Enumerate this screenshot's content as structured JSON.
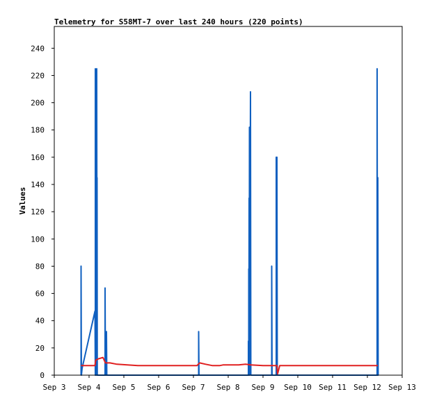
{
  "chart_data": {
    "type": "line",
    "title": "Telemetry for S58MT-7 over last 240 hours (220 points)",
    "xlabel": "",
    "ylabel": "Values",
    "xlim": [
      3.0,
      13.0
    ],
    "ylim": [
      0,
      256
    ],
    "x_ticks": [
      3,
      4,
      5,
      6,
      7,
      8,
      9,
      10,
      11,
      12,
      13
    ],
    "x_tick_labels": [
      "Sep 3",
      "Sep 4",
      "Sep 5",
      "Sep 6",
      "Sep 7",
      "Sep 8",
      "Sep 9",
      "Sep 10",
      "Sep 11",
      "Sep 12",
      "Sep 13"
    ],
    "y_ticks": [
      0,
      20,
      40,
      60,
      80,
      100,
      120,
      140,
      160,
      180,
      200,
      220,
      240
    ],
    "grid": false,
    "legend": "none",
    "series": [
      {
        "color": "#1060c0",
        "points": [
          [
            3.77,
            0
          ],
          [
            3.77,
            80
          ],
          [
            3.78,
            0
          ],
          [
            3.8,
            5
          ],
          [
            4.17,
            47
          ],
          [
            4.18,
            0
          ],
          [
            4.18,
            225
          ],
          [
            4.19,
            0
          ],
          [
            4.22,
            225
          ],
          [
            4.23,
            0
          ],
          [
            4.23,
            145
          ],
          [
            4.235,
            0
          ],
          [
            4.21,
            16
          ],
          [
            4.22,
            0
          ],
          [
            4.46,
            0
          ],
          [
            4.46,
            64
          ],
          [
            4.47,
            0
          ],
          [
            4.5,
            0
          ],
          [
            4.5,
            32
          ],
          [
            4.51,
            0
          ],
          [
            4.52,
            0
          ],
          [
            7.15,
            0
          ],
          [
            7.15,
            32
          ],
          [
            7.16,
            0
          ],
          [
            8.58,
            0
          ],
          [
            8.58,
            25
          ],
          [
            8.59,
            0
          ],
          [
            8.59,
            78
          ],
          [
            8.595,
            0
          ],
          [
            8.6,
            130
          ],
          [
            8.605,
            0
          ],
          [
            8.61,
            182
          ],
          [
            8.615,
            0
          ],
          [
            8.64,
            208
          ],
          [
            8.65,
            0
          ],
          [
            9.25,
            0
          ],
          [
            9.25,
            80
          ],
          [
            9.26,
            0
          ],
          [
            9.38,
            0
          ],
          [
            9.38,
            160
          ],
          [
            9.39,
            0
          ],
          [
            9.4,
            160
          ],
          [
            9.41,
            0
          ],
          [
            12.28,
            0
          ],
          [
            12.28,
            225
          ],
          [
            12.29,
            0
          ],
          [
            12.3,
            0
          ],
          [
            12.3,
            145
          ],
          [
            12.31,
            0
          ],
          [
            12.32,
            0
          ]
        ]
      },
      {
        "color": "#e02020",
        "points": [
          [
            3.77,
            7
          ],
          [
            4.17,
            7
          ],
          [
            4.19,
            11
          ],
          [
            4.27,
            12
          ],
          [
            4.4,
            13
          ],
          [
            4.47,
            9
          ],
          [
            4.6,
            9
          ],
          [
            4.8,
            8
          ],
          [
            5.1,
            7.5
          ],
          [
            5.4,
            7
          ],
          [
            6.0,
            7
          ],
          [
            6.5,
            7
          ],
          [
            7.1,
            7
          ],
          [
            7.18,
            9
          ],
          [
            7.35,
            8
          ],
          [
            7.55,
            7
          ],
          [
            7.75,
            7
          ],
          [
            7.85,
            7.5
          ],
          [
            8.1,
            7.5
          ],
          [
            8.3,
            7.5
          ],
          [
            8.5,
            8
          ],
          [
            8.65,
            7.5
          ],
          [
            9.0,
            7
          ],
          [
            9.25,
            7
          ],
          [
            9.4,
            7
          ],
          [
            9.42,
            1
          ],
          [
            9.48,
            7
          ],
          [
            10.0,
            7
          ],
          [
            11.0,
            7
          ],
          [
            12.0,
            7
          ],
          [
            12.3,
            7
          ]
        ]
      }
    ]
  }
}
